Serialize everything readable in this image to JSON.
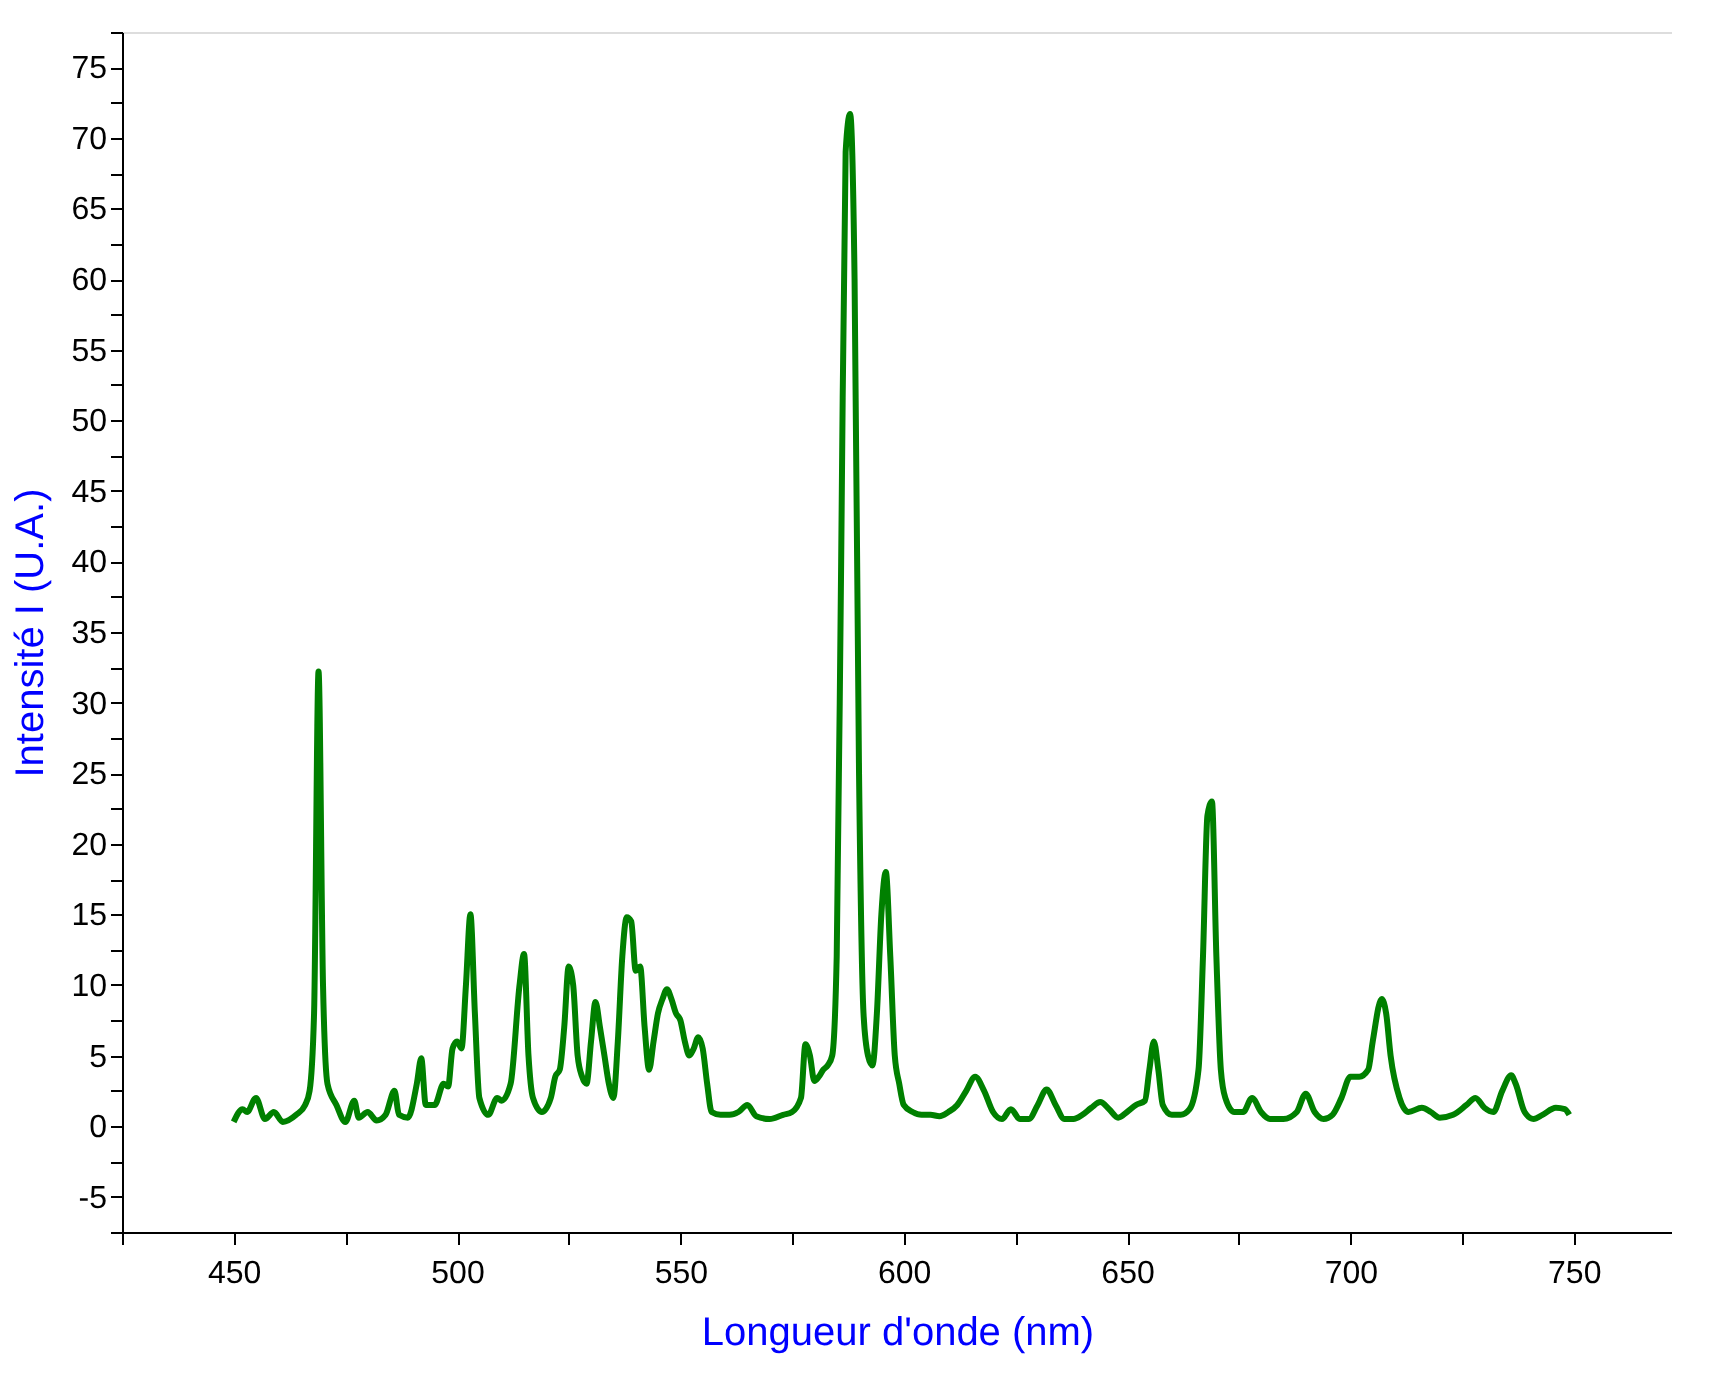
{
  "chart_data": {
    "type": "line",
    "xlabel": "Longueur d'onde (nm)",
    "ylabel": "Intensité I (U.A.)",
    "xlim": [
      425,
      772
    ],
    "ylim": [
      -7.5,
      77.5
    ],
    "xticks": [
      {
        "value": 425,
        "label": null
      },
      450,
      {
        "value": 475,
        "label": null
      },
      500,
      {
        "value": 525,
        "label": null
      },
      550,
      {
        "value": 575,
        "label": null
      },
      600,
      {
        "value": 625,
        "label": null
      },
      650,
      {
        "value": 675,
        "label": null
      },
      700,
      {
        "value": 725,
        "label": null
      },
      750
    ],
    "yticks": [
      {
        "value": -7.5,
        "label": null
      },
      -5,
      {
        "value": -2.5,
        "label": null
      },
      0,
      {
        "value": 2.5,
        "label": null
      },
      5,
      {
        "value": 7.5,
        "label": null
      },
      10,
      {
        "value": 12.5,
        "label": null
      },
      15,
      {
        "value": 17.5,
        "label": null
      },
      20,
      {
        "value": 22.5,
        "label": null
      },
      25,
      {
        "value": 27.5,
        "label": null
      },
      30,
      {
        "value": 32.5,
        "label": null
      },
      35,
      {
        "value": 37.5,
        "label": null
      },
      40,
      {
        "value": 42.5,
        "label": null
      },
      45,
      {
        "value": 47.5,
        "label": null
      },
      50,
      {
        "value": 52.5,
        "label": null
      },
      55,
      {
        "value": 57.5,
        "label": null
      },
      60,
      {
        "value": 62.5,
        "label": null
      },
      65,
      {
        "value": 67.5,
        "label": null
      },
      70,
      {
        "value": 72.5,
        "label": null
      },
      75,
      {
        "value": 77.5,
        "label": null
      }
    ],
    "grid": false,
    "marker": "none",
    "line_style": "solid",
    "series": [
      {
        "color": "#008000",
        "x": [
          450,
          452,
          453,
          455,
          457,
          459,
          461,
          464,
          466,
          467,
          468,
          469,
          470,
          471,
          473,
          475,
          477,
          478,
          480,
          482,
          484,
          486,
          487,
          489,
          491,
          492,
          493,
          495,
          497,
          498,
          499,
          500,
          501,
          502,
          503,
          504,
          505,
          507,
          509,
          510,
          512,
          514,
          515,
          516,
          517,
          519,
          521,
          522,
          523,
          524,
          525,
          526,
          527,
          528,
          529,
          530,
          531,
          532,
          533,
          534,
          535,
          536,
          537,
          538,
          539,
          540,
          541,
          542,
          543,
          544,
          545,
          546,
          547,
          548,
          549,
          550,
          551,
          552,
          553,
          554,
          555,
          556,
          557,
          559,
          561,
          563,
          565,
          567,
          570,
          573,
          575,
          577,
          578,
          579,
          580,
          581,
          582,
          583,
          584,
          585,
          586,
          587,
          588,
          589,
          590,
          591,
          592,
          593,
          594,
          595,
          596,
          597,
          598,
          599,
          600,
          602,
          604,
          606,
          608,
          610,
          612,
          614,
          616,
          618,
          620,
          622,
          624,
          626,
          628,
          630,
          632,
          634,
          636,
          638,
          640,
          642,
          644,
          646,
          648,
          650,
          652,
          654,
          655,
          656,
          657,
          658,
          660,
          662,
          664,
          666,
          667,
          668,
          669,
          670,
          671,
          672,
          674,
          676,
          678,
          680,
          682,
          685,
          688,
          690,
          692,
          694,
          696,
          698,
          700,
          702,
          704,
          705,
          707,
          708,
          709,
          711,
          713,
          716,
          718,
          720,
          723,
          726,
          728,
          730,
          732,
          734,
          736,
          737,
          739,
          741,
          743,
          746,
          748,
          749
        ],
        "values": [
          0.3,
          1.2,
          1.0,
          2.0,
          0.5,
          1.0,
          0.3,
          0.8,
          1.5,
          2.5,
          8,
          32.2,
          10,
          3,
          1.5,
          0.3,
          1.8,
          0.6,
          1.0,
          0.4,
          0.8,
          2.5,
          0.8,
          0.6,
          3,
          4.8,
          1.5,
          1.5,
          3,
          2.8,
          5.5,
          6,
          5.5,
          10,
          15,
          8,
          2,
          0.8,
          2,
          1.8,
          3,
          10,
          12.2,
          5,
          2,
          1,
          2,
          3.5,
          4,
          7,
          11.3,
          10,
          5,
          3.5,
          3,
          6,
          8.8,
          7,
          5,
          3,
          2,
          6,
          12,
          14.8,
          14.5,
          11,
          11.3,
          7,
          4,
          6,
          8,
          9,
          9.7,
          9,
          8,
          7.5,
          6,
          5,
          5.5,
          6.3,
          5.5,
          3,
          1,
          0.8,
          0.8,
          1,
          1.5,
          0.7,
          0.5,
          0.8,
          1,
          2,
          5.8,
          5,
          3.2,
          3.5,
          4,
          4.3,
          5,
          12,
          40,
          69,
          71.7,
          60,
          25,
          8,
          5,
          4.3,
          8,
          15,
          18,
          12,
          5,
          3,
          1.5,
          1,
          0.8,
          0.8,
          0.7,
          1,
          1.5,
          2.5,
          3.5,
          2.5,
          1,
          0.5,
          1.2,
          0.5,
          0.5,
          1.5,
          2.6,
          1.5,
          0.5,
          0.5,
          0.8,
          1.3,
          1.7,
          1.2,
          0.6,
          1,
          1.5,
          1.8,
          4,
          6,
          4,
          1.5,
          0.8,
          0.8,
          1.2,
          4,
          12,
          22,
          23,
          12,
          4,
          2,
          1,
          1,
          2,
          1,
          0.5,
          0.5,
          1,
          2.3,
          1,
          0.5,
          0.8,
          2,
          3.5,
          3.5,
          4,
          6,
          9,
          8,
          5,
          2,
          1,
          1.3,
          1,
          0.6,
          0.8,
          1.5,
          2,
          1.3,
          1,
          2.5,
          3.6,
          3,
          1,
          0.5,
          0.8,
          1.3,
          1.2,
          0.8
        ]
      }
    ]
  }
}
